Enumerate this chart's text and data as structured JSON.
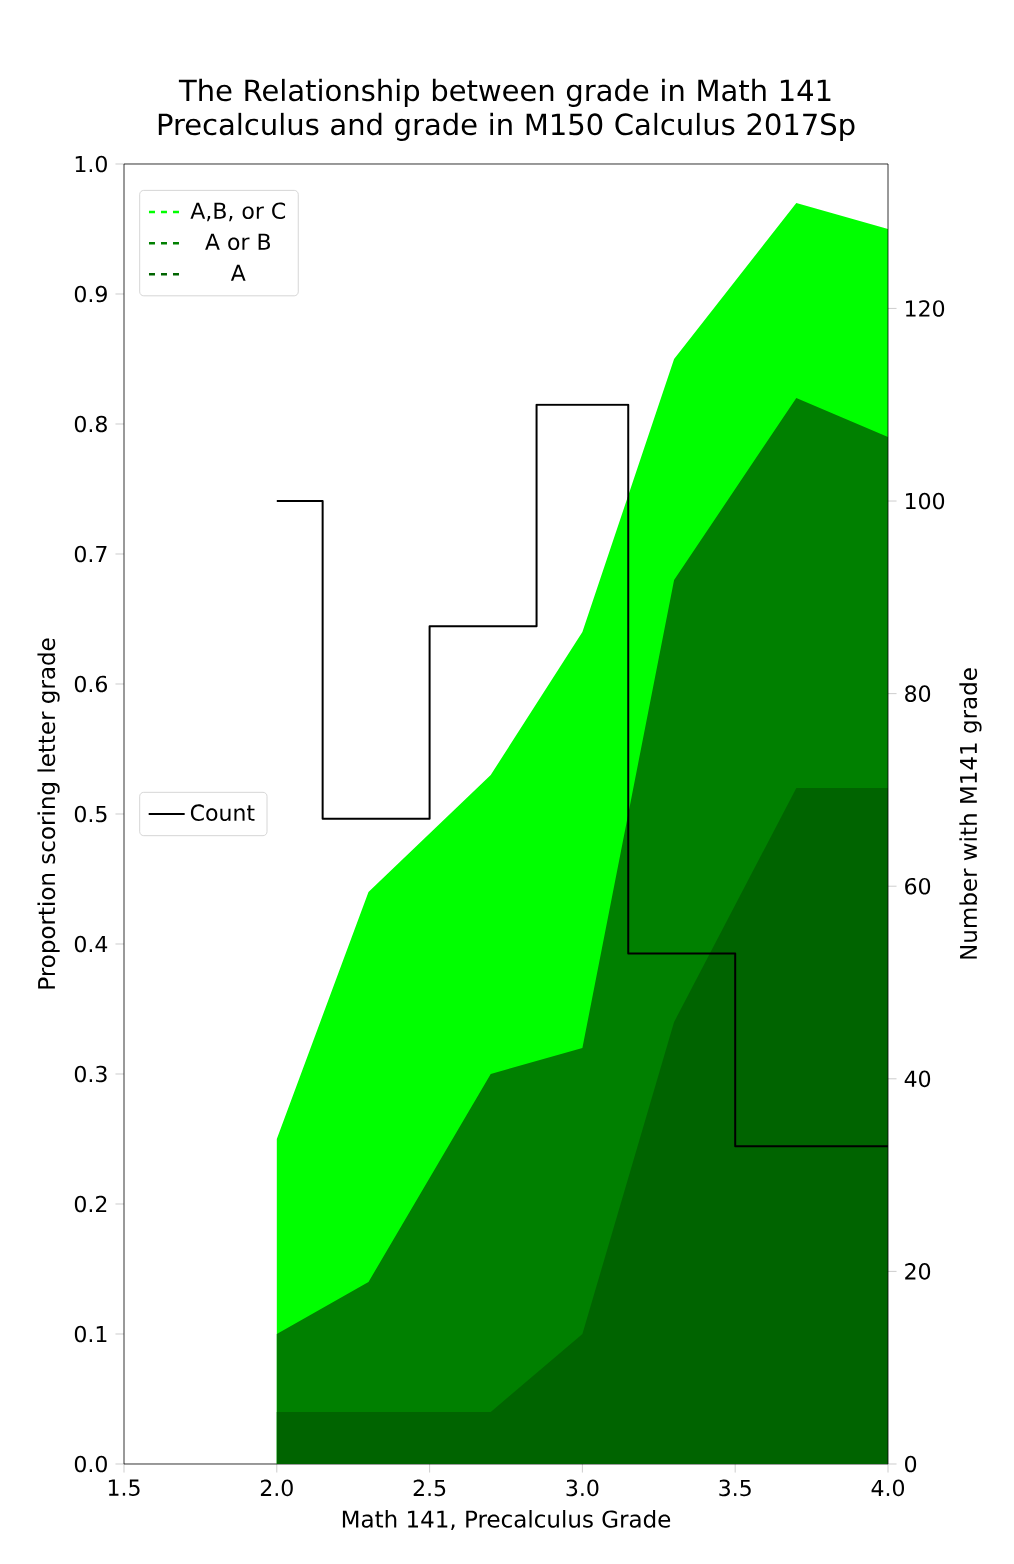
{
  "chart_data": {
    "type": "area",
    "title": "The Relationship between grade in Math 141 Precalculus and grade in M150 Calculus 2017Sp",
    "xlabel": "Math 141, Precalculus Grade",
    "ylabel": "Proportion scoring letter grade",
    "y2label": "Number with M141 grade",
    "x": [
      2.0,
      2.3,
      2.7,
      3.0,
      3.3,
      3.7,
      4.0
    ],
    "series": [
      {
        "name": "A,B, or C",
        "color": "#00ff00",
        "line_style": "dashed",
        "values": [
          0.25,
          0.44,
          0.53,
          0.64,
          0.85,
          0.97,
          0.95
        ]
      },
      {
        "name": "A or B",
        "color": "#008000",
        "line_style": "dashed",
        "values": [
          0.1,
          0.14,
          0.3,
          0.32,
          0.68,
          0.82,
          0.79
        ]
      },
      {
        "name": "A",
        "color": "#006400",
        "line_style": "dashed",
        "values": [
          0.04,
          0.04,
          0.04,
          0.1,
          0.34,
          0.52,
          0.52
        ]
      },
      {
        "name": "Count",
        "type": "step",
        "axis": "y2",
        "color": "#000000",
        "line_style": "solid",
        "values": [
          100,
          67,
          87,
          110,
          53,
          33,
          33
        ]
      }
    ],
    "xlim": [
      1.5,
      4.0
    ],
    "xticks": [
      {
        "value": 1.5,
        "label": "1.5"
      },
      {
        "value": 2.0,
        "label": "2.0"
      },
      {
        "value": 2.5,
        "label": "2.5"
      },
      {
        "value": 3.0,
        "label": "3.0"
      },
      {
        "value": 3.5,
        "label": "3.5"
      },
      {
        "value": 4.0,
        "label": "4.0"
      }
    ],
    "ylim": [
      0,
      1
    ],
    "yticks": [
      {
        "value": 0,
        "label": "0.0"
      },
      {
        "value": 0.1,
        "label": "0.1"
      },
      {
        "value": 0.2,
        "label": "0.2"
      },
      {
        "value": 0.3,
        "label": "0.3"
      },
      {
        "value": 0.4,
        "label": "0.4"
      },
      {
        "value": 0.5,
        "label": "0.5"
      },
      {
        "value": 0.6,
        "label": "0.6"
      },
      {
        "value": 0.7,
        "label": "0.7"
      },
      {
        "value": 0.8,
        "label": "0.8"
      },
      {
        "value": 0.9,
        "label": "0.9"
      },
      {
        "value": 1.0,
        "label": "1.0"
      }
    ],
    "y2lim": [
      0,
      135
    ],
    "y2ticks": [
      {
        "value": 0,
        "label": "0"
      },
      {
        "value": 20,
        "label": "20"
      },
      {
        "value": 40,
        "label": "40"
      },
      {
        "value": 60,
        "label": "60"
      },
      {
        "value": 80,
        "label": "80"
      },
      {
        "value": 100,
        "label": "100"
      },
      {
        "value": 120,
        "label": "120"
      }
    ],
    "legend": "top left"
  }
}
